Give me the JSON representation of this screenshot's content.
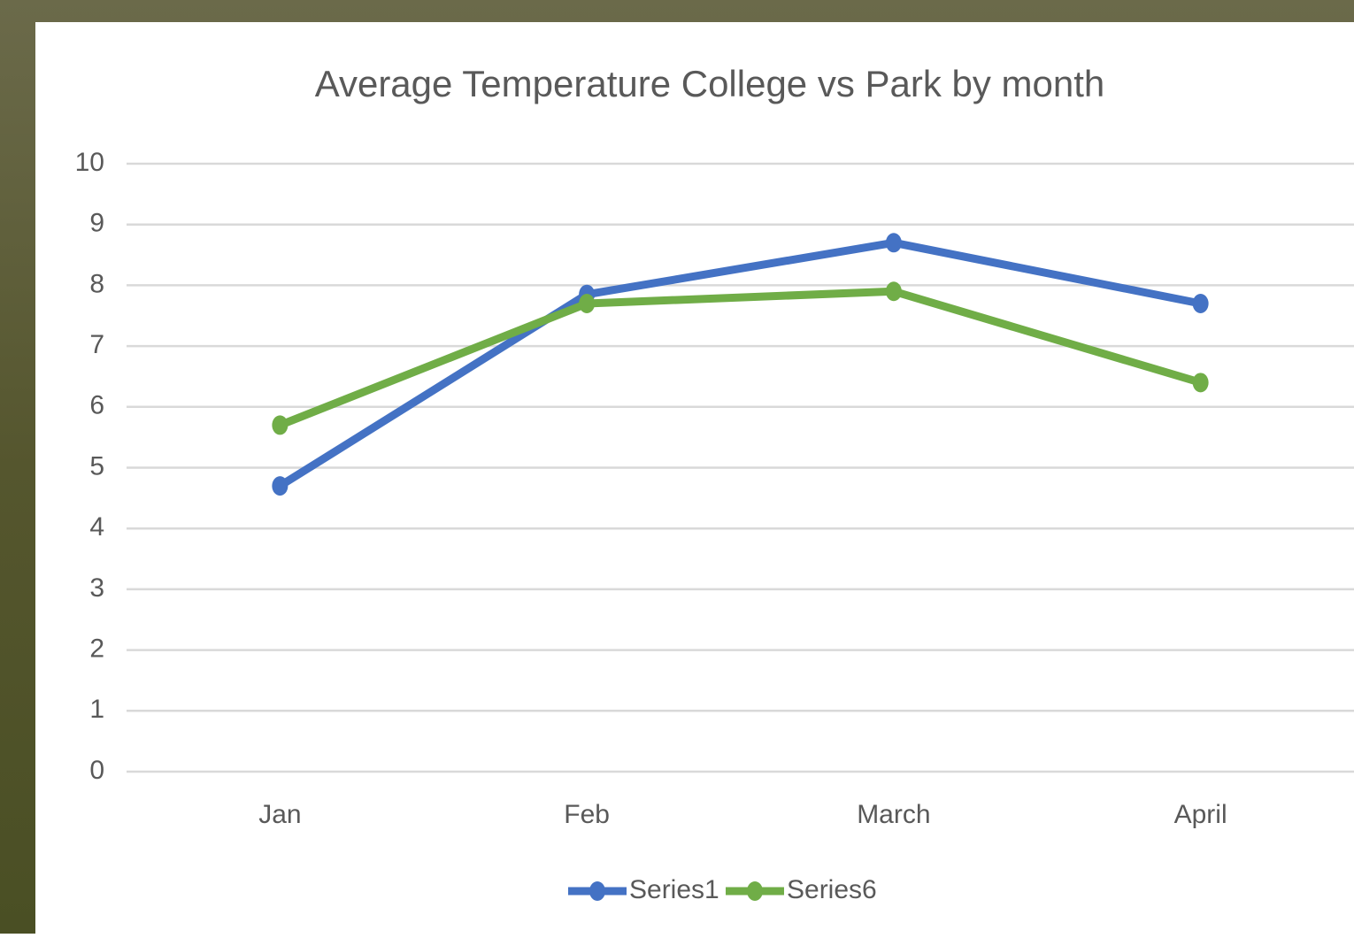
{
  "chart_data": {
    "type": "line",
    "title": "Average Temperature College vs Park by month",
    "categories": [
      "Jan",
      "Feb",
      "March",
      "April"
    ],
    "series": [
      {
        "name": "Series1",
        "color": "#4472c4",
        "values": [
          4.7,
          7.85,
          8.7,
          7.7
        ]
      },
      {
        "name": "Series6",
        "color": "#70ad47",
        "values": [
          5.7,
          7.7,
          7.9,
          6.4
        ]
      }
    ],
    "ylim": [
      0,
      10
    ],
    "yticks": [
      0,
      1,
      2,
      3,
      4,
      5,
      6,
      7,
      8,
      9,
      10
    ],
    "grid": true,
    "legend": "bottom"
  }
}
